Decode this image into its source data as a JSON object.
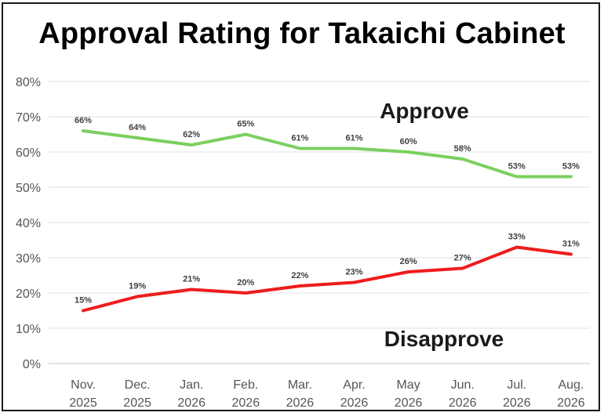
{
  "chart_data": {
    "type": "line",
    "title": "Approval Rating for Takaichi Cabinet",
    "categories": [
      [
        "Nov.",
        "2025"
      ],
      [
        "Dec.",
        "2025"
      ],
      [
        "Jan.",
        "2026"
      ],
      [
        "Feb.",
        "2026"
      ],
      [
        "Mar.",
        "2026"
      ],
      [
        "Apr.",
        "2026"
      ],
      [
        "May",
        "2026"
      ],
      [
        "Jun.",
        "2026"
      ],
      [
        "Jul.",
        "2026"
      ],
      [
        "Aug.",
        "2026"
      ]
    ],
    "yticks": [
      "0%",
      "10%",
      "20%",
      "30%",
      "40%",
      "50%",
      "60%",
      "70%",
      "80%"
    ],
    "ylim": [
      0,
      80
    ],
    "grid": "horizontal",
    "series": [
      {
        "name": "Approve",
        "color": "#7ccf5f",
        "values": [
          66,
          64,
          62,
          65,
          61,
          61,
          60,
          58,
          53,
          53
        ]
      },
      {
        "name": "Disapprove",
        "color": "#ee1c1c",
        "values": [
          15,
          19,
          21,
          20,
          22,
          23,
          26,
          27,
          33,
          31
        ]
      }
    ],
    "value_suffix": "%"
  }
}
